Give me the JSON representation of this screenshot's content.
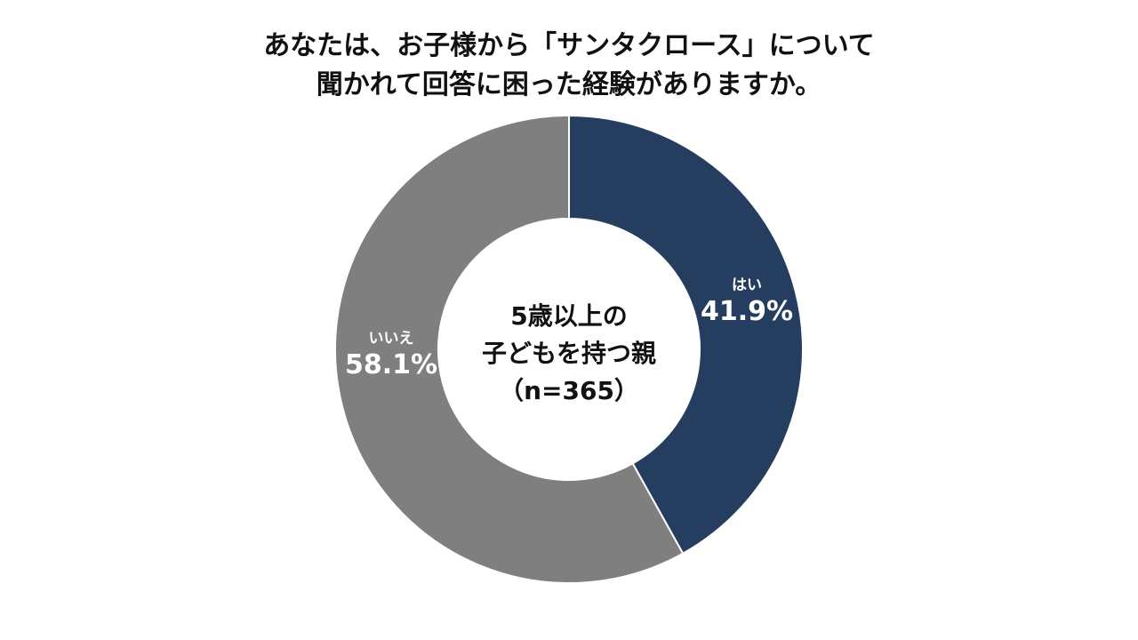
{
  "chart_data": {
    "type": "pie",
    "style": "donut",
    "title_lines": [
      "あなたは、お子様から「サンタクロース」について",
      "聞かれて回答に困った経験がありますか。"
    ],
    "center_lines": [
      "5歳以上の",
      "子どもを持つ親",
      "（n=365）"
    ],
    "slices": [
      {
        "label": "はい",
        "value": 41.9,
        "value_label": "41.9%",
        "color": "#253D5E"
      },
      {
        "label": "いいえ",
        "value": 58.1,
        "value_label": "58.1%",
        "color": "#7F7F7F"
      }
    ]
  }
}
